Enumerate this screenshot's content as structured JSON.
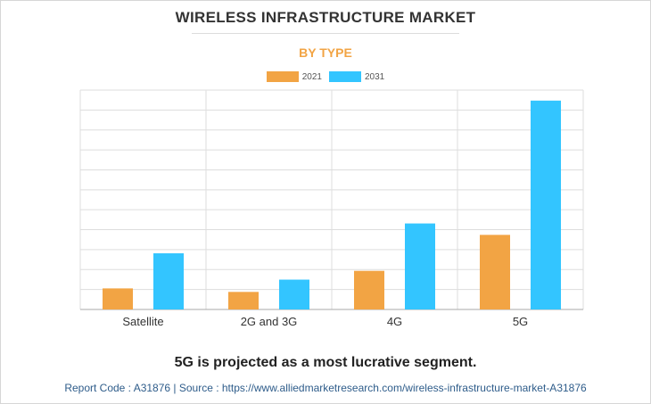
{
  "header": {
    "title": "WIRELESS INFRASTRUCTURE MARKET",
    "subtitle": "BY TYPE"
  },
  "colors": {
    "series_2021": "#f2a444",
    "series_2031": "#33c5ff",
    "subtitle": "#f2a444",
    "grid": "#dddddd",
    "axis": "#aaaaaa",
    "source_text": "#2e5c8a"
  },
  "chart_data": {
    "type": "bar",
    "categories": [
      "Satellite",
      "2G and 3G",
      "4G",
      "5G"
    ],
    "series": [
      {
        "name": "2021",
        "values": [
          2.4,
          2.0,
          4.4,
          8.5
        ]
      },
      {
        "name": "2031",
        "values": [
          6.4,
          3.4,
          9.8,
          23.8
        ]
      }
    ],
    "ylim": [
      0,
      25
    ],
    "grid": true,
    "y_tick_labels_shown": false,
    "legend": "top-center"
  },
  "footer": {
    "note": "5G is projected as a most lucrative segment.",
    "source": "Report Code : A31876  |  Source : https://www.alliedmarketresearch.com/wireless-infrastructure-market-A31876"
  }
}
